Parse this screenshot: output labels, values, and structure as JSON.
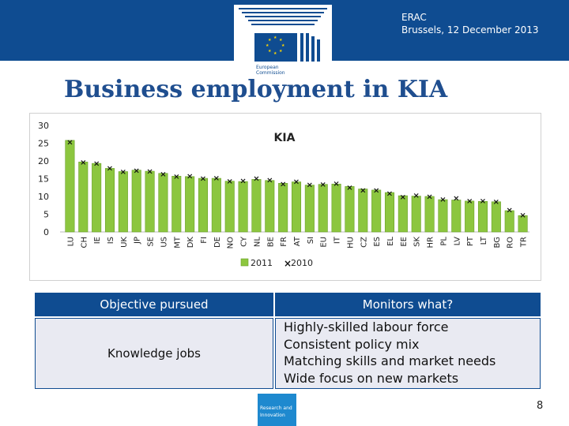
{
  "header": {
    "line1": "ERAC",
    "line2": "Brussels, 12 December 2013",
    "logo_text_1": "European",
    "logo_text_2": "Commission"
  },
  "title": "Business employment in KIA",
  "chart_data": {
    "type": "bar",
    "title": "KIA",
    "xlabel": "",
    "ylabel": "",
    "ylim": [
      0,
      30
    ],
    "yticks": [
      0,
      5,
      10,
      15,
      20,
      25,
      30
    ],
    "grid": false,
    "legend": "bottom",
    "categories": [
      "LU",
      "CH",
      "IE",
      "IS",
      "UK",
      "JP",
      "SE",
      "US",
      "MT",
      "DK",
      "FI",
      "DE",
      "NO",
      "CY",
      "NL",
      "BE",
      "FR",
      "AT",
      "SI",
      "EU",
      "IT",
      "HU",
      "CZ",
      "ES",
      "EL",
      "EE",
      "SK",
      "HR",
      "PL",
      "LV",
      "PT",
      "LT",
      "BG",
      "RO",
      "TR"
    ],
    "series": [
      {
        "name": "2011",
        "marker": "bar",
        "color": "#8cc63f",
        "values": [
          25.8,
          19.7,
          19.3,
          17.9,
          17.0,
          17.4,
          17.1,
          16.5,
          15.7,
          15.6,
          15.1,
          15.1,
          14.3,
          14.2,
          14.8,
          14.5,
          13.7,
          14.1,
          13.2,
          13.4,
          13.5,
          12.8,
          12.1,
          11.8,
          11.1,
          10.2,
          10.1,
          10.0,
          9.1,
          9.0,
          8.7,
          8.6,
          8.5,
          6.0,
          4.6
        ]
      },
      {
        "name": "2010",
        "marker": "x",
        "color": "#111111",
        "values": [
          25.5,
          19.8,
          19.5,
          18.1,
          17.1,
          17.5,
          17.2,
          16.5,
          15.8,
          15.9,
          15.2,
          15.3,
          14.4,
          14.6,
          15.2,
          14.8,
          13.7,
          14.3,
          13.4,
          13.6,
          13.8,
          12.7,
          11.9,
          11.9,
          11.0,
          10.0,
          10.5,
          10.1,
          9.3,
          9.7,
          8.9,
          8.9,
          8.7,
          6.3,
          4.9
        ]
      }
    ]
  },
  "table": {
    "col1_header": "Objective pursued",
    "col2_header": "Monitors what?",
    "col1_value": "Knowledge jobs",
    "col2_lines": [
      "Highly-skilled labour force",
      "Consistent policy mix",
      "Matching skills and market needs",
      "Wide focus on new markets"
    ]
  },
  "footer": {
    "logo_line1": "Research and",
    "logo_line2": "Innovation",
    "page_number": "8"
  },
  "colors": {
    "brand_blue": "#0f4c91",
    "bar_green": "#8cc63f",
    "cell_bg": "#e9eaf2"
  }
}
